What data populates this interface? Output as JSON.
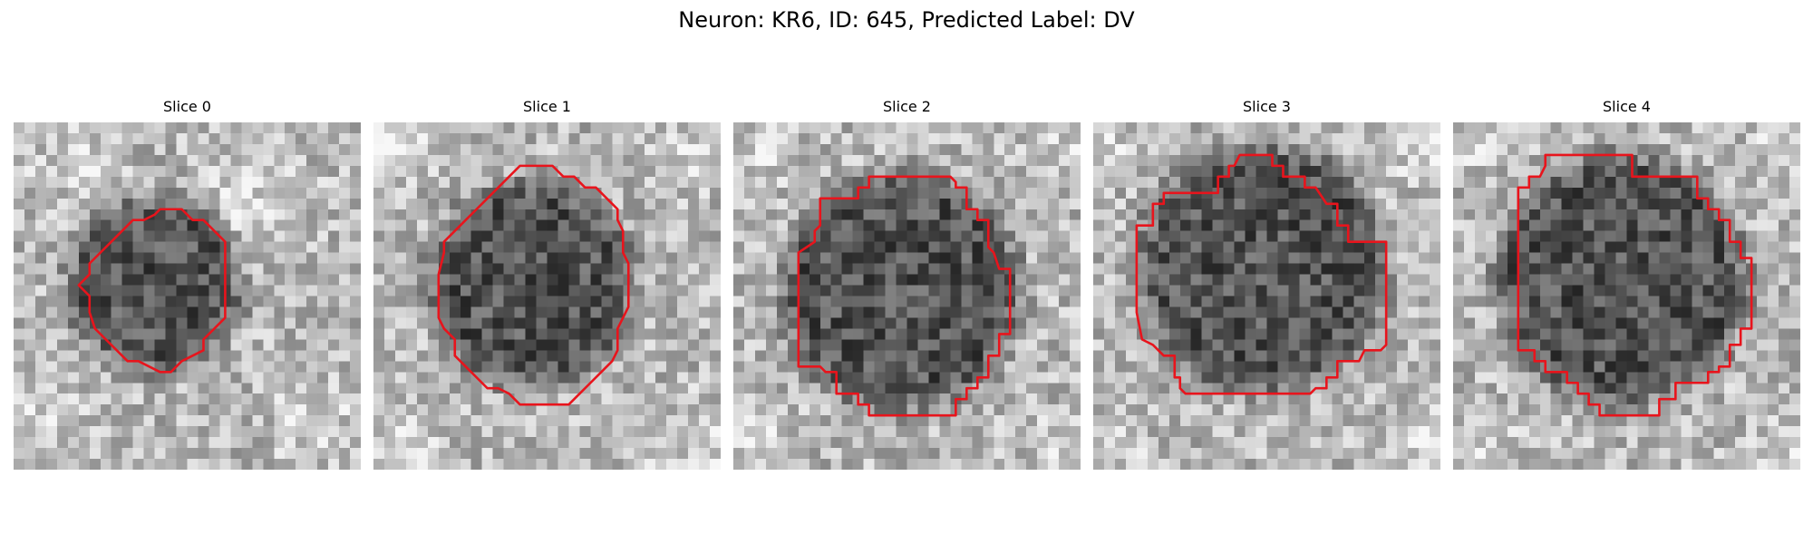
{
  "figure": {
    "title": "Neuron: KR6, ID: 645, Predicted Label: DV"
  },
  "colors": {
    "contour": "#e8141c",
    "background": "#ffffff",
    "colormap": "grayscale"
  },
  "slices": [
    {
      "title": "Slice 0"
    },
    {
      "title": "Slice 1"
    },
    {
      "title": "Slice 2"
    },
    {
      "title": "Slice 3"
    },
    {
      "title": "Slice 4"
    }
  ]
}
